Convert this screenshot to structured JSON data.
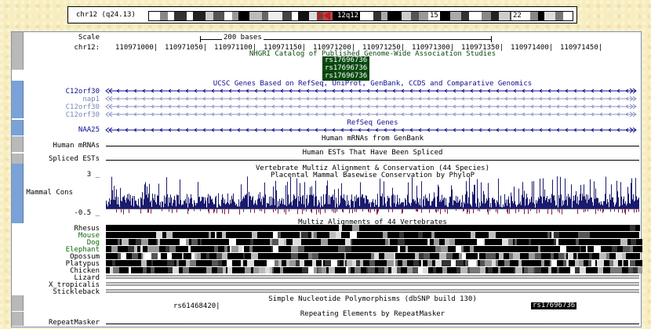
{
  "ideogram": {
    "chrom_label": "chr12 (q24.13)",
    "band_labels": [
      "12q12",
      "15",
      "22"
    ]
  },
  "ruler": {
    "scale_label": "Scale",
    "scale_value": "200 bases",
    "chrom_label": "chr12:",
    "positions": [
      "110971000|",
      "110971050|",
      "110971100|",
      "110971150|",
      "110971200|",
      "110971250|",
      "110971300|",
      "110971350|",
      "110971400|",
      "110971450|"
    ]
  },
  "tracks": {
    "gwas": {
      "title": "NHGRI Catalog of Published Genome-Wide Association Studies",
      "items": [
        "rs17696736",
        "rs17696736",
        "rs17696736"
      ],
      "color": "#0a4a10"
    },
    "ucsc_genes": {
      "title": "UCSC Genes Based on RefSeq, UniProt, GenBank, CCDS and Comparative Genomics",
      "genes": [
        "C12orf30",
        "nap1",
        "C12orf30",
        "C12orf30"
      ],
      "color": "#0b0b8f"
    },
    "refseq": {
      "title": "RefSeq Genes",
      "genes": [
        "NAA25"
      ]
    },
    "mrna": {
      "title": "Human mRNAs from GenBank",
      "label": "Human mRNAs"
    },
    "est": {
      "title": "Human ESTs That Have Been Spliced",
      "label": "Spliced ESTs"
    },
    "conservation": {
      "title": "Vertebrate Multiz Alignment & Conservation (44 Species)",
      "subtitle": "Placental Mammal Basewise Conservation by PhyloP",
      "label": "Mammal Cons",
      "ymax": "3 _",
      "ymin": "-0.5 _",
      "pos_color": "#1a1a6e",
      "neg_color": "#8b1a3a"
    },
    "multiz": {
      "title": "Multiz Alignments of 44 Vertebrates",
      "species": [
        {
          "name": "Rhesus",
          "color": "#000000"
        },
        {
          "name": "Mouse",
          "color": "#0b6b0b"
        },
        {
          "name": "Dog",
          "color": "#0b6b0b"
        },
        {
          "name": "Elephant",
          "color": "#0b6b0b"
        },
        {
          "name": "Opossum",
          "color": "#000000"
        },
        {
          "name": "Platypus",
          "color": "#000000"
        },
        {
          "name": "Chicken",
          "color": "#000000"
        },
        {
          "name": "Lizard",
          "color": "#000000"
        },
        {
          "name": "X_tropicalis",
          "color": "#000000"
        },
        {
          "name": "Stickleback",
          "color": "#000000"
        }
      ]
    },
    "snp": {
      "title": "Simple Nucleotide Polymorphisms (dbSNP build 130)",
      "items": [
        "rs17696736",
        "rs61468420|"
      ]
    },
    "repeats": {
      "title": "Repeating Elements by RepeatMasker",
      "label": "RepeatMasker"
    }
  }
}
